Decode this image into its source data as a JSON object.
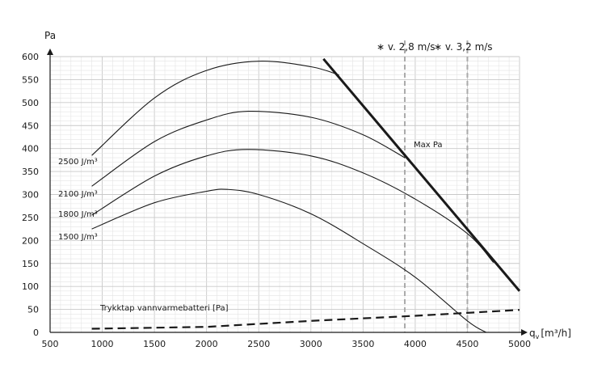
{
  "chart_data": {
    "type": "line",
    "ylabel": "Pa",
    "xlabel": "q",
    "xlabel_sub": "v",
    "xlabel_unit": "[m³/h]",
    "xlim": [
      500,
      5000
    ],
    "ylim": [
      0,
      600
    ],
    "xticks": [
      500,
      1000,
      1500,
      2000,
      2500,
      3000,
      3500,
      4000,
      4500,
      5000
    ],
    "yticks": [
      0,
      50,
      100,
      150,
      200,
      250,
      300,
      350,
      400,
      450,
      500,
      550,
      600
    ],
    "x_minor_step": 100,
    "y_minor_step": 10,
    "grid": true,
    "top_labels": [
      "∗ v. 2,8 m/s",
      "∗ v. 3,2 m/s"
    ],
    "velocity_lines": [
      {
        "label": "∗ v. 2,8 m/s",
        "x": 3900
      },
      {
        "label": "∗ v. 3,2 m/s",
        "x": 4500
      }
    ],
    "max_line": {
      "label": "Max Pa",
      "points": [
        [
          3120,
          595
        ],
        [
          5000,
          90
        ]
      ]
    },
    "series": [
      {
        "name": "2500 J/m³",
        "points": [
          [
            900,
            385
          ],
          [
            1500,
            510
          ],
          [
            2000,
            570
          ],
          [
            2500,
            590
          ],
          [
            3000,
            578
          ],
          [
            3270,
            560
          ]
        ]
      },
      {
        "name": "2100 J/m³",
        "points": [
          [
            900,
            318
          ],
          [
            1500,
            415
          ],
          [
            2000,
            462
          ],
          [
            2400,
            481
          ],
          [
            3000,
            468
          ],
          [
            3500,
            430
          ],
          [
            3900,
            380
          ]
        ]
      },
      {
        "name": "1800 J/m³",
        "points": [
          [
            900,
            255
          ],
          [
            1500,
            340
          ],
          [
            2000,
            384
          ],
          [
            2400,
            398
          ],
          [
            3000,
            384
          ],
          [
            3500,
            347
          ],
          [
            4000,
            290
          ],
          [
            4500,
            215
          ],
          [
            4750,
            152
          ]
        ]
      },
      {
        "name": "1500 J/m³",
        "points": [
          [
            900,
            225
          ],
          [
            1500,
            282
          ],
          [
            2000,
            307
          ],
          [
            2200,
            311
          ],
          [
            2500,
            300
          ],
          [
            3000,
            258
          ],
          [
            3500,
            193
          ],
          [
            4000,
            120
          ],
          [
            4500,
            25
          ],
          [
            4680,
            0
          ]
        ]
      },
      {
        "name": "Trykktap vannvarmebatteri [Pa]",
        "style": "dashed",
        "points": [
          [
            900,
            8
          ],
          [
            2000,
            12
          ],
          [
            3000,
            25
          ],
          [
            4000,
            36
          ],
          [
            5000,
            49
          ]
        ]
      }
    ]
  }
}
